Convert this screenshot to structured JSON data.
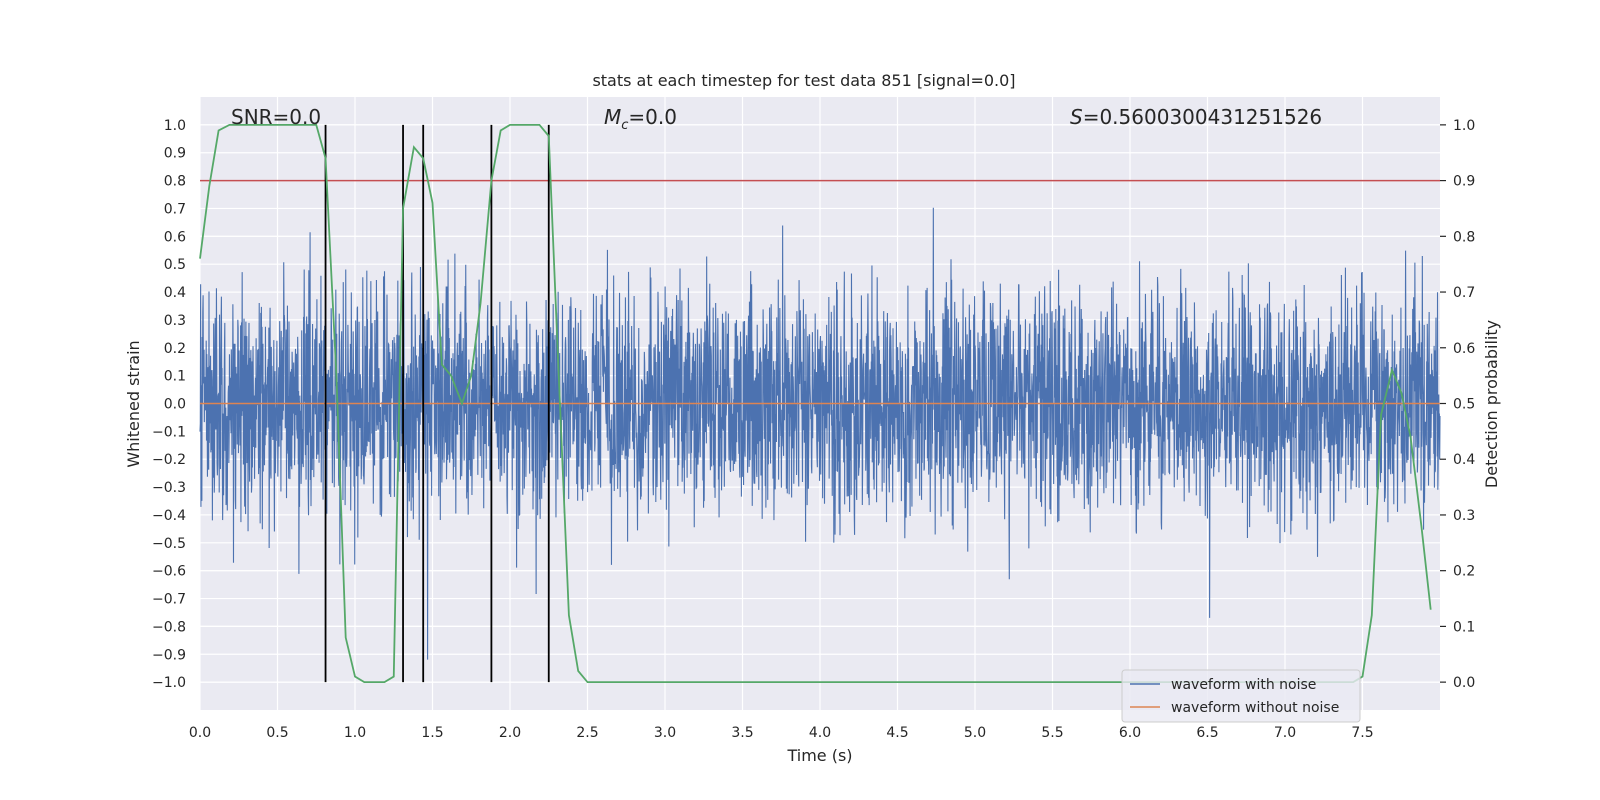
{
  "chart_data": {
    "type": "line",
    "title": "stats at each timestep for test data 851 [signal=0.0]",
    "xlabel": "Time (s)",
    "ylabel": "Whitened strain",
    "ylabel_right": "Detection probability",
    "xlim": [
      0.0,
      8.0
    ],
    "ylim": [
      -1.1,
      1.1
    ],
    "ylim_right": [
      -0.05,
      1.05
    ],
    "x_ticks": [
      0.0,
      0.5,
      1.0,
      1.5,
      2.0,
      2.5,
      3.0,
      3.5,
      4.0,
      4.5,
      5.0,
      5.5,
      6.0,
      6.5,
      7.0,
      7.5
    ],
    "x_tick_labels": [
      "0.0",
      "0.5",
      "1.0",
      "1.5",
      "2.0",
      "2.5",
      "3.0",
      "3.5",
      "4.0",
      "4.5",
      "5.0",
      "5.5",
      "6.0",
      "6.5",
      "7.0",
      "7.5"
    ],
    "y_ticks": [
      1.0,
      0.9,
      0.8,
      0.7,
      0.6,
      0.5,
      0.4,
      0.3,
      0.2,
      0.1,
      0.0,
      -0.1,
      -0.2,
      -0.3,
      -0.4,
      -0.5,
      -0.6,
      -0.7,
      -0.8,
      -0.9,
      -1.0
    ],
    "y_tick_labels": [
      "1.0",
      "0.9",
      "0.8",
      "0.7",
      "0.6",
      "0.5",
      "0.4",
      "0.3",
      "0.2",
      "0.1",
      "0.0",
      "−0.1",
      "−0.2",
      "−0.3",
      "−0.4",
      "−0.5",
      "−0.6",
      "−0.7",
      "−0.8",
      "−0.9",
      "−1.0"
    ],
    "y_right_ticks": [
      1.0,
      0.9,
      0.8,
      0.7,
      0.6,
      0.5,
      0.4,
      0.3,
      0.2,
      0.1,
      0.0
    ],
    "y_right_tick_labels": [
      "1.0",
      "0.9",
      "0.8",
      "0.7",
      "0.6",
      "0.5",
      "0.4",
      "0.3",
      "0.2",
      "0.1",
      "0.0"
    ],
    "annotations": {
      "snr": "SNR=0.0",
      "mc_symbol": "M",
      "mc_subscript": "c",
      "mc_value": "=0.0",
      "s_symbol": "S",
      "s_value": "=0.5600300431251526"
    },
    "threshold_right": 0.9,
    "vertical_markers": [
      0.81,
      1.31,
      1.44,
      1.88,
      2.25
    ],
    "series": [
      {
        "name": "waveform with noise",
        "color": "#4c72b0",
        "description": "whitened noise, typical amplitude +/-0.4, spikes to about +/-0.9",
        "typical_amplitude": 0.4,
        "peak_amplitude": 0.99,
        "duration": 8.0,
        "samples": 4000
      },
      {
        "name": "waveform without noise",
        "color": "#dd8452",
        "x": [
          0.0,
          8.0
        ],
        "y": [
          0.0,
          0.0
        ]
      },
      {
        "name": "detection probability",
        "color": "#55a868",
        "axis": "right",
        "x": [
          0.0,
          0.06,
          0.12,
          0.19,
          0.25,
          0.31,
          0.38,
          0.44,
          0.5,
          0.56,
          0.62,
          0.69,
          0.75,
          0.81,
          0.88,
          0.94,
          1.0,
          1.06,
          1.12,
          1.19,
          1.25,
          1.31,
          1.38,
          1.44,
          1.5,
          1.56,
          1.62,
          1.69,
          1.75,
          1.81,
          1.88,
          1.94,
          2.0,
          2.06,
          2.12,
          2.19,
          2.25,
          2.31,
          2.38,
          2.44,
          2.5,
          3.0,
          4.0,
          5.0,
          6.0,
          7.0,
          7.38,
          7.44,
          7.5,
          7.56,
          7.62,
          7.69,
          7.75,
          7.81,
          7.88,
          7.94
        ],
        "y": [
          0.76,
          0.89,
          0.99,
          1.0,
          1.0,
          1.0,
          1.0,
          1.0,
          1.0,
          1.0,
          1.0,
          1.0,
          1.0,
          0.94,
          0.55,
          0.08,
          0.01,
          0.0,
          0.0,
          0.0,
          0.01,
          0.85,
          0.96,
          0.94,
          0.86,
          0.57,
          0.55,
          0.5,
          0.55,
          0.68,
          0.9,
          0.99,
          1.0,
          1.0,
          1.0,
          1.0,
          0.98,
          0.58,
          0.12,
          0.02,
          0.0,
          0.0,
          0.0,
          0.0,
          0.0,
          0.0,
          0.0,
          0.0,
          0.01,
          0.12,
          0.48,
          0.56,
          0.52,
          0.44,
          0.28,
          0.13
        ]
      }
    ],
    "legend": [
      {
        "label": "waveform with noise",
        "color": "#4c72b0"
      },
      {
        "label": "waveform without noise",
        "color": "#dd8452"
      }
    ],
    "legend_position": "lower-right",
    "grid": true
  }
}
